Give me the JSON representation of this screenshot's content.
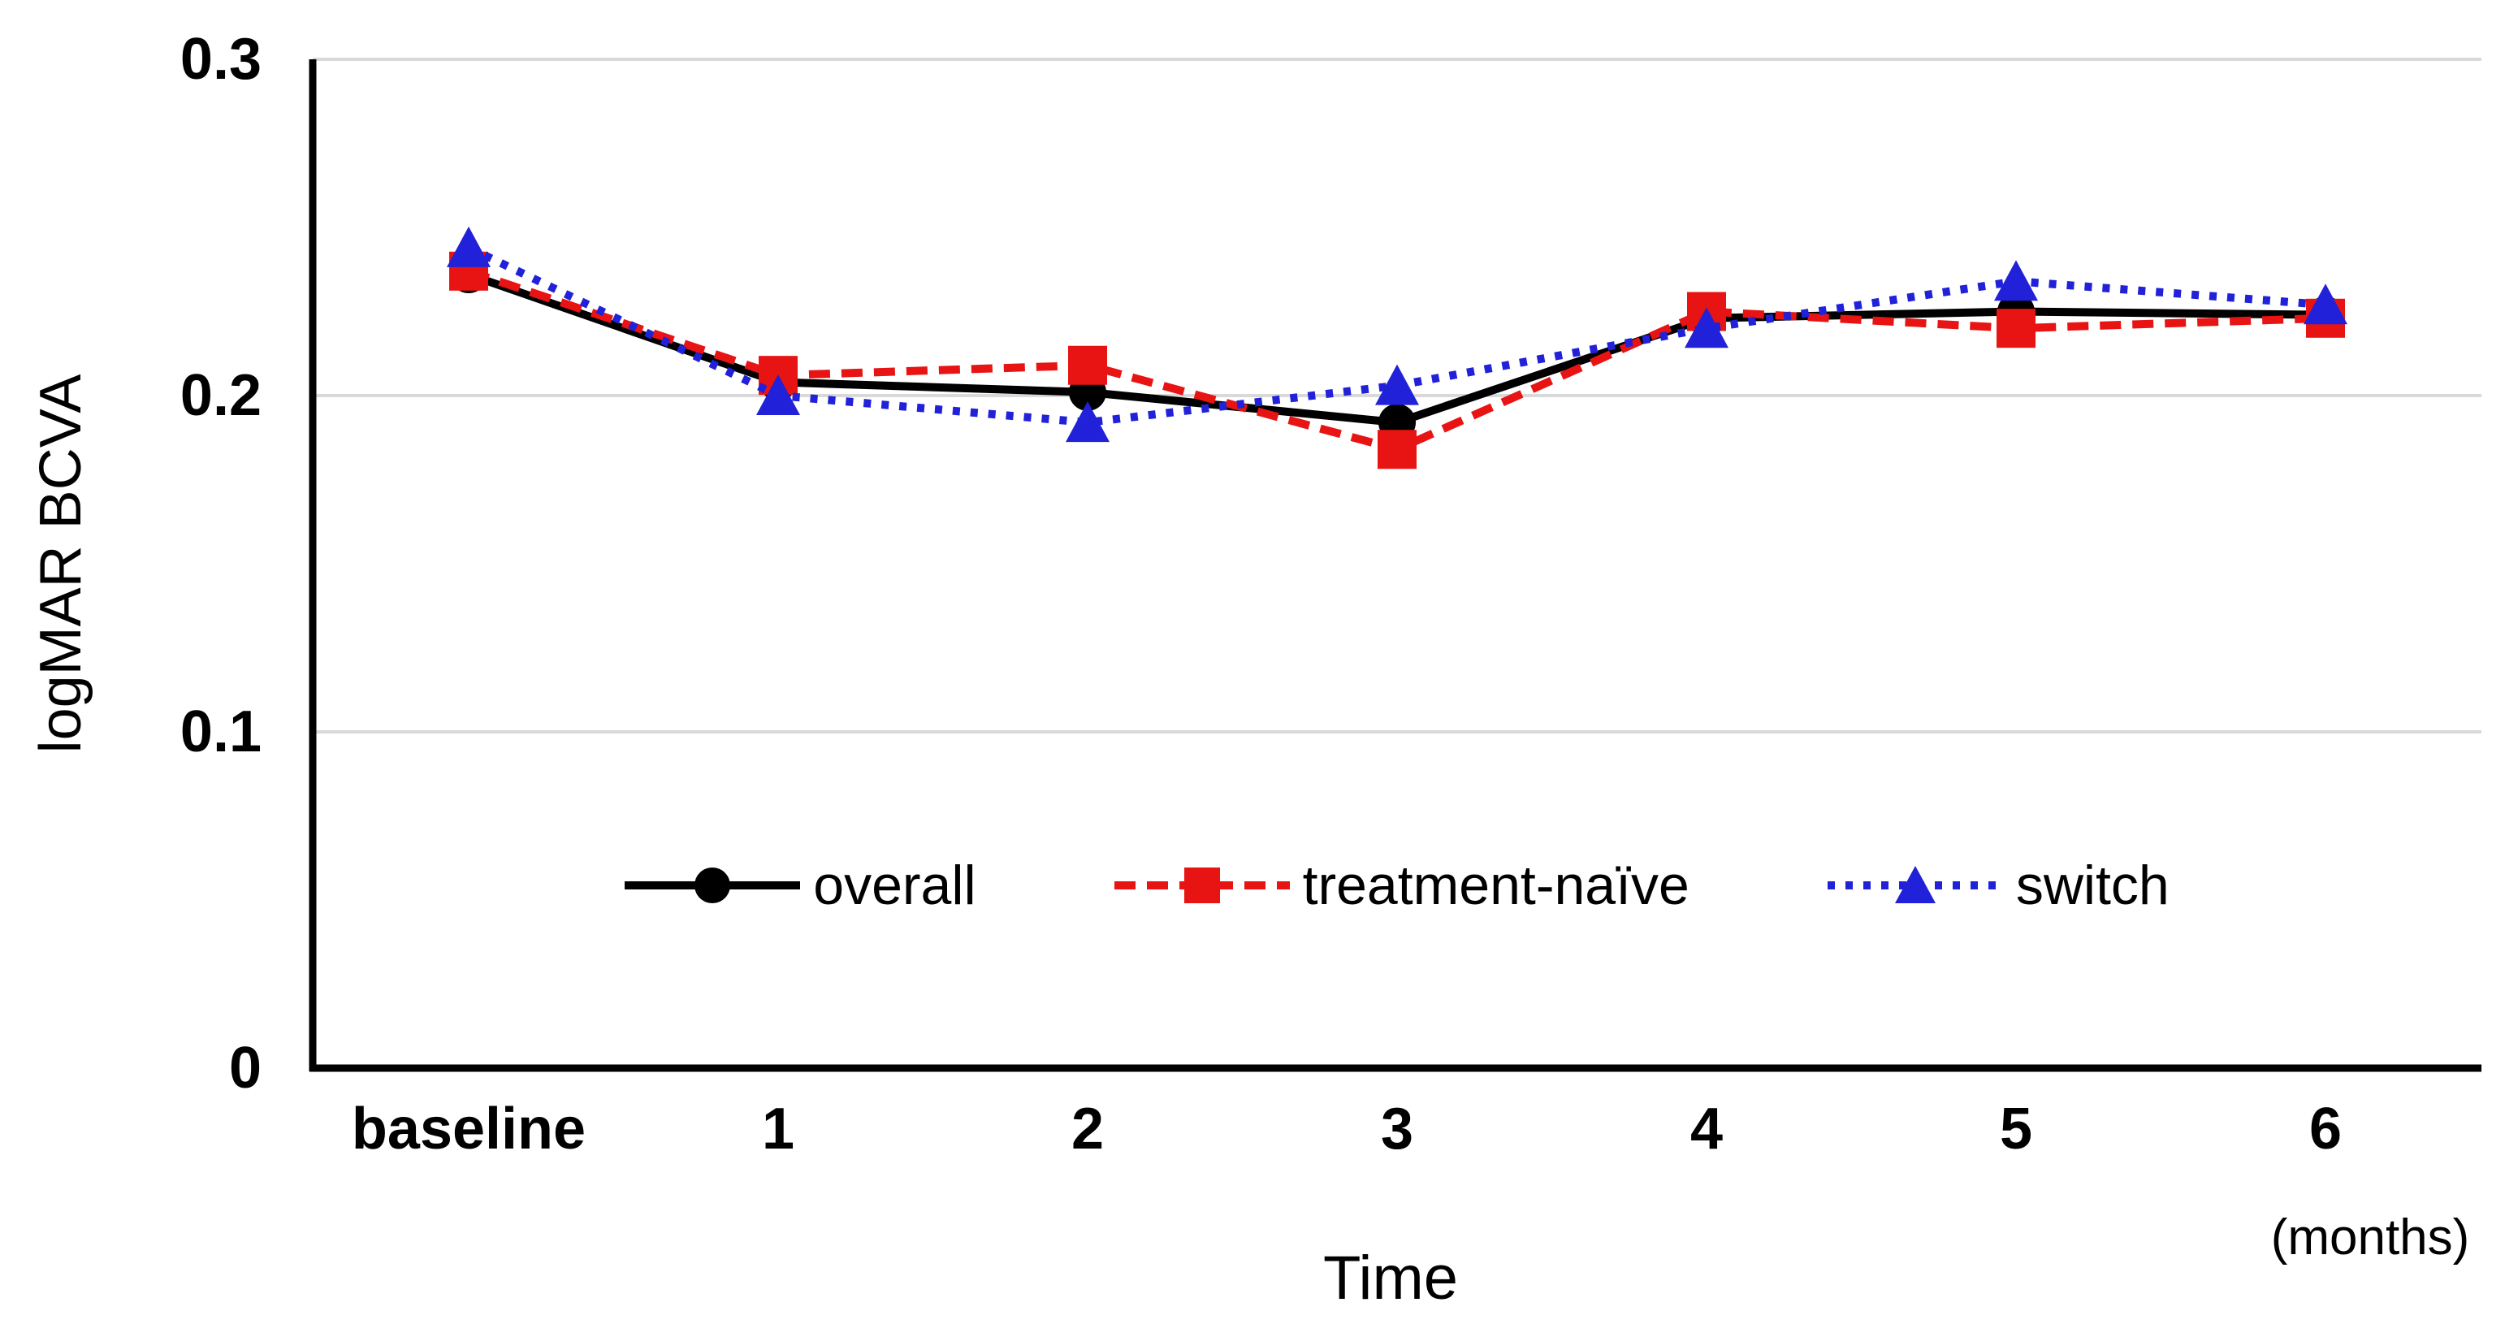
{
  "figure": {
    "background": "#ffffff"
  },
  "axes": {
    "y_title": "logMAR BCVA",
    "x_title": "Time",
    "x_unit_note": "(months)",
    "y_ticks": [
      {
        "label": "0.3",
        "value": 0.3
      },
      {
        "label": "0.2",
        "value": 0.2
      },
      {
        "label": "0.1",
        "value": 0.1
      },
      {
        "label": "0",
        "value": 0
      }
    ]
  },
  "colors": {
    "overall": "#000000",
    "treatment_naive": "#e81414",
    "switch": "#2121d9",
    "gridline": "#d9d9d9",
    "axis": "#000000"
  },
  "chart_data": {
    "type": "line",
    "title": "",
    "categories": [
      "baseline",
      "1",
      "2",
      "3",
      "4",
      "5",
      "6"
    ],
    "series": [
      {
        "name": "overall",
        "color": "#000000",
        "line_style": "solid",
        "marker": "circle",
        "values": [
          0.236,
          0.204,
          0.201,
          0.192,
          0.223,
          0.225,
          0.224
        ]
      },
      {
        "name": "treatment-naïve",
        "color": "#e81414",
        "line_style": "dashed",
        "marker": "square",
        "values": [
          0.237,
          0.206,
          0.209,
          0.184,
          0.225,
          0.22,
          0.223
        ]
      },
      {
        "name": "switch",
        "color": "#2121d9",
        "line_style": "dotted",
        "marker": "triangle",
        "values": [
          0.244,
          0.2,
          0.192,
          0.203,
          0.22,
          0.234,
          0.227
        ]
      }
    ],
    "xlabel": "Time",
    "x_unit": "(months)",
    "ylabel": "logMAR BCVA",
    "ylim": [
      0,
      0.3
    ],
    "grid": "horizontal-only",
    "legend_position": "inside-bottom-center"
  }
}
